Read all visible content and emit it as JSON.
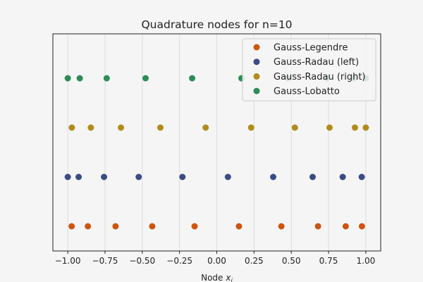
{
  "chart_data": {
    "type": "scatter",
    "title": "Quadrature nodes for n=10",
    "xlabel_main": "Node ",
    "xlabel_var": "x",
    "xlabel_sub": "i",
    "ylabel": "",
    "xlim": [
      -1.1,
      1.1
    ],
    "ylim": [
      -0.5,
      3.9
    ],
    "grid": "vertical",
    "legend_position": "top-right",
    "x_ticks": [
      -1.0,
      -0.75,
      -0.5,
      -0.25,
      0.0,
      0.25,
      0.5,
      0.75,
      1.0
    ],
    "x_tick_labels": [
      "−1.00",
      "−0.75",
      "−0.50",
      "−0.25",
      "0.00",
      "0.25",
      "0.50",
      "0.75",
      "1.00"
    ],
    "series": [
      {
        "name": "Gauss-Legendre",
        "color": "#cc5510",
        "y": 0,
        "x": [
          -0.9739,
          -0.8651,
          -0.6794,
          -0.4334,
          -0.1489,
          0.1489,
          0.4334,
          0.6794,
          0.8651,
          0.9739
        ]
      },
      {
        "name": "Gauss-Radau (left)",
        "color": "#3b4b86",
        "y": 1,
        "x": [
          -1.0,
          -0.927,
          -0.7567,
          -0.524,
          -0.2304,
          0.0747,
          0.3786,
          0.6433,
          0.8451,
          0.9727
        ]
      },
      {
        "name": "Gauss-Radau (right)",
        "color": "#b28b1c",
        "y": 2,
        "x": [
          -0.9727,
          -0.8451,
          -0.6433,
          -0.3786,
          -0.0747,
          0.2304,
          0.524,
          0.7567,
          0.927,
          1.0
        ]
      },
      {
        "name": "Gauss-Lobatto",
        "color": "#2e8b57",
        "y": 3,
        "x": [
          -1.0,
          -0.9195,
          -0.7388,
          -0.4779,
          -0.1653,
          0.1653,
          0.4779,
          0.7388,
          0.9195,
          1.0
        ]
      }
    ]
  }
}
